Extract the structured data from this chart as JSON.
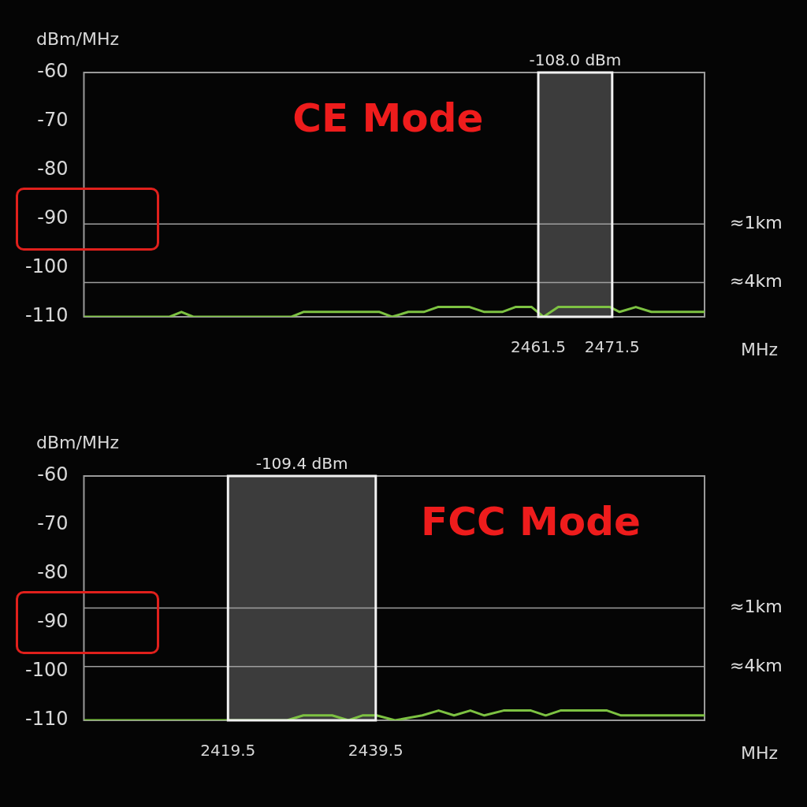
{
  "chart_data": [
    {
      "type": "line",
      "ylabel": "dBm/MHz",
      "xlabel": "MHz",
      "annotations": [
        "CE Mode"
      ],
      "xlim": [
        2400,
        2484
      ],
      "xticks": [
        2461.5,
        2471.5
      ],
      "ylim": [
        -110,
        -60
      ],
      "yticks": [
        -60,
        -70,
        -80,
        -90,
        -100,
        -110
      ],
      "grid": false,
      "legend": false,
      "marker": "none",
      "series": [
        {
          "color": "#7dc242",
          "x": [
            2400,
            2411.6,
            2413.2,
            2414.8,
            2428.1,
            2429.7,
            2440,
            2441.7,
            2443.9,
            2446,
            2447.9,
            2452.2,
            2454.2,
            2456.6,
            2458.4,
            2460.6,
            2462.2,
            2464.2,
            2471.2,
            2472.5,
            2474.7,
            2476.8,
            2484
          ],
          "values": [
            -110,
            -110,
            -109,
            -110,
            -110,
            -109,
            -109,
            -110,
            -109,
            -109,
            -108,
            -108,
            -109,
            -109,
            -108,
            -108,
            -110,
            -108,
            -108,
            -109,
            -108,
            -109,
            -109
          ]
        }
      ],
      "bands": [
        {
          "axis": "x",
          "from": 2461.5,
          "to": 2471.5,
          "label": "-108.0 dBm",
          "color": "#4a4a4a"
        }
      ],
      "ref_lines": [
        {
          "axis": "y",
          "value": -91,
          "label": "≈1km",
          "color": "#9e9e9e"
        },
        {
          "axis": "y",
          "value": -103,
          "label": "≈4km",
          "color": "#9e9e9e"
        }
      ]
    },
    {
      "type": "line",
      "ylabel": "dBm/MHz",
      "xlabel": "MHz",
      "annotations": [
        "FCC Mode"
      ],
      "xlim": [
        2400,
        2484
      ],
      "xticks": [
        2419.5,
        2439.5
      ],
      "ylim": [
        -110,
        -60
      ],
      "yticks": [
        -60,
        -70,
        -80,
        -90,
        -100,
        -110
      ],
      "grid": false,
      "legend": false,
      "marker": "none",
      "series": [
        {
          "color": "#7dc242",
          "x": [
            2400,
            2419.3,
            2427.5,
            2429.7,
            2433.6,
            2435.8,
            2437.7,
            2439.1,
            2439.6,
            2442.1,
            2445.8,
            2448,
            2450.1,
            2452.3,
            2454.2,
            2456.8,
            2460.5,
            2462.5,
            2464.5,
            2470.8,
            2472.7,
            2484
          ],
          "values": [
            -110,
            -110,
            -110,
            -109,
            -109,
            -110,
            -109,
            -109,
            -109,
            -110,
            -109,
            -108,
            -109,
            -108,
            -109,
            -108,
            -108,
            -109,
            -108,
            -108,
            -109,
            -109
          ]
        }
      ],
      "bands": [
        {
          "axis": "x",
          "from": 2419.5,
          "to": 2439.5,
          "label": "-109.4 dBm",
          "color": "#4a4a4a"
        }
      ],
      "ref_lines": [
        {
          "axis": "y",
          "value": -87,
          "label": "≈1km",
          "color": "#9e9e9e"
        },
        {
          "axis": "y",
          "value": -99,
          "label": "≈4km",
          "color": "#9e9e9e"
        }
      ]
    }
  ]
}
